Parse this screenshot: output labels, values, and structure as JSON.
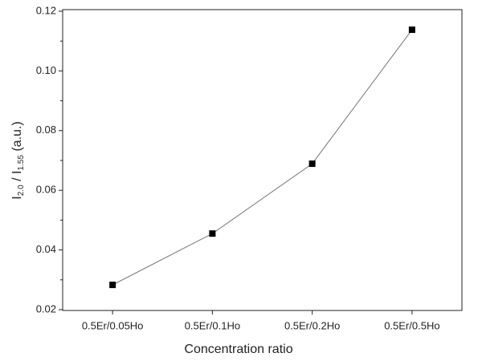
{
  "chart_data": {
    "type": "line",
    "x_label": "Concentration ratio",
    "y_label": [
      "I",
      "2.0",
      " / I",
      "1.55",
      " (a.u.)"
    ],
    "categories": [
      "0.5Er/0.05Ho",
      "0.5Er/0.1Ho",
      "0.5Er/0.2Ho",
      "0.5Er/0.5Ho"
    ],
    "values": [
      0.0283,
      0.0455,
      0.0689,
      0.1138
    ],
    "color": "#000000",
    "line_color": "#777777",
    "ylim": [
      0.02,
      0.12
    ],
    "yticks": [
      0.02,
      0.04,
      0.06,
      0.08,
      {
        "value": 0.1,
        "label": "0.10"
      },
      0.12
    ]
  }
}
